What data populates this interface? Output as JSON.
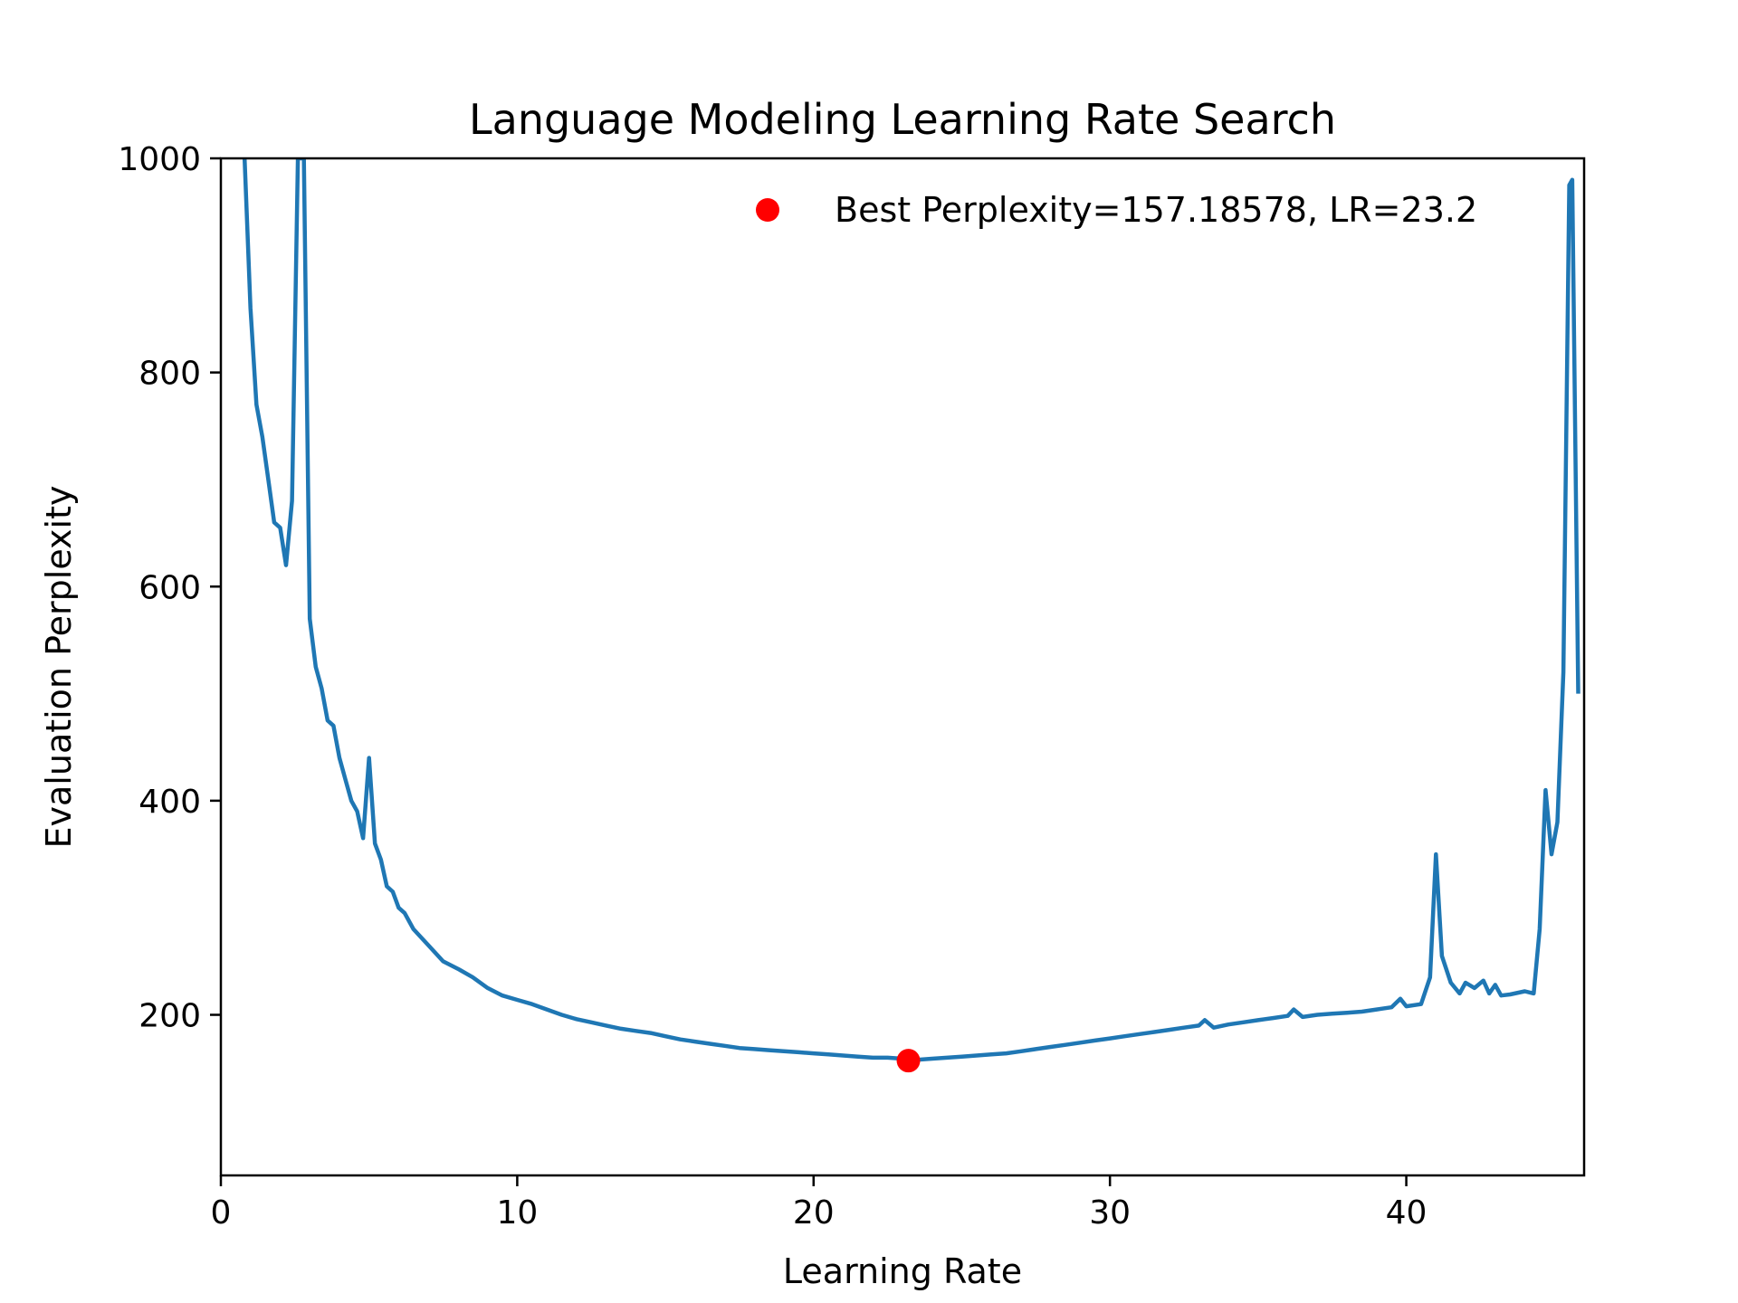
{
  "chart_data": {
    "type": "line",
    "title": "Language Modeling Learning Rate Search",
    "xlabel": "Learning Rate",
    "ylabel": "Evaluation Perplexity",
    "xlim": [
      0,
      46
    ],
    "ylim": [
      50,
      1000
    ],
    "xticks": [
      0,
      10,
      20,
      30,
      40
    ],
    "yticks": [
      200,
      400,
      600,
      800,
      1000
    ],
    "grid": false,
    "legend_position": "top-right",
    "line_color": "#1f77b4",
    "marker_color": "#ff0000",
    "series": [
      {
        "x": [
          0.8,
          1.0,
          1.2,
          1.4,
          1.6,
          1.8,
          2.0,
          2.2,
          2.4,
          2.6,
          2.8,
          3.0,
          3.2,
          3.4,
          3.6,
          3.8,
          4.0,
          4.2,
          4.4,
          4.6,
          4.8,
          5.0,
          5.2,
          5.4,
          5.6,
          5.8,
          6.0,
          6.2,
          6.5,
          7.0,
          7.5,
          8.0,
          8.5,
          9.0,
          9.5,
          10.0,
          10.5,
          11.0,
          11.5,
          12.0,
          12.5,
          13.0,
          13.5,
          14.0,
          14.5,
          15.0,
          15.5,
          16.0,
          16.5,
          17.0,
          17.5,
          18.0,
          18.5,
          19.0,
          19.5,
          20.0,
          20.5,
          21.0,
          21.5,
          22.0,
          22.5,
          23.0,
          23.2,
          23.5,
          24.0,
          24.5,
          25.0,
          25.5,
          26.0,
          26.5,
          27.0,
          27.5,
          28.0,
          28.5,
          29.0,
          29.5,
          30.0,
          30.5,
          31.0,
          31.5,
          32.0,
          32.5,
          33.0,
          33.2,
          33.5,
          34.0,
          34.5,
          35.0,
          35.5,
          36.0,
          36.2,
          36.5,
          37.0,
          37.5,
          38.0,
          38.5,
          39.0,
          39.5,
          39.8,
          40.0,
          40.5,
          40.8,
          41.0,
          41.2,
          41.5,
          41.8,
          42.0,
          42.3,
          42.6,
          42.8,
          43.0,
          43.2,
          43.5,
          44.0,
          44.3,
          44.5,
          44.7,
          44.9,
          45.1,
          45.3,
          45.5,
          45.6,
          45.8
        ],
        "y": [
          1000,
          860,
          770,
          740,
          700,
          660,
          655,
          620,
          680,
          1000,
          1000,
          570,
          525,
          505,
          475,
          470,
          440,
          420,
          400,
          390,
          365,
          440,
          360,
          345,
          320,
          315,
          300,
          295,
          280,
          265,
          250,
          243,
          235,
          225,
          218,
          214,
          210,
          205,
          200,
          196,
          193,
          190,
          187,
          185,
          183,
          180,
          177,
          175,
          173,
          171,
          169,
          168,
          167,
          166,
          165,
          164,
          163,
          162,
          161,
          160,
          160,
          159,
          157.19,
          158,
          159,
          160,
          161,
          162,
          163,
          164,
          166,
          168,
          170,
          172,
          174,
          176,
          178,
          180,
          182,
          184,
          186,
          188,
          190,
          195,
          188,
          191,
          193,
          195,
          197,
          199,
          205,
          198,
          200,
          201,
          202,
          203,
          205,
          207,
          215,
          208,
          210,
          235,
          350,
          255,
          230,
          220,
          230,
          225,
          232,
          220,
          228,
          218,
          219,
          222,
          220,
          280,
          410,
          350,
          380,
          520,
          975,
          980,
          500
        ]
      }
    ],
    "best_point": {
      "x": 23.2,
      "y": 157.18578
    },
    "legend": [
      {
        "label": "Best Perplexity=157.18578, LR=23.2",
        "marker": "circle"
      }
    ]
  }
}
